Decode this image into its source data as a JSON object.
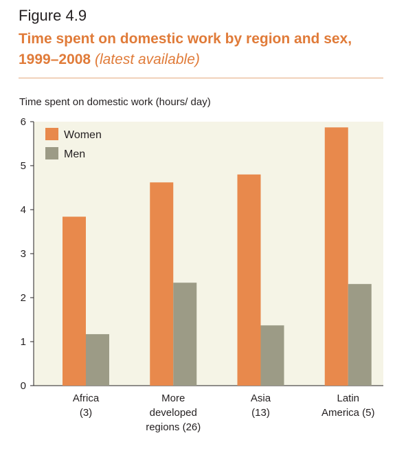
{
  "figure_label": "Figure 4.9",
  "title_main": "Time spent on domestic work by region and sex, 1999–2008",
  "title_sub": "(latest available)",
  "colors": {
    "women": "#e8894c",
    "men": "#9c9b86",
    "plot_bg": "#f5f4e6",
    "title": "#e07b39"
  },
  "chart_data": {
    "type": "bar",
    "ylabel": "Time spent on domestic work (hours/ day)",
    "xlabel": "",
    "ylim": [
      0,
      6
    ],
    "yticks": [
      0,
      1,
      2,
      3,
      4,
      5,
      6
    ],
    "grid": false,
    "legend_position": "top-left",
    "categories": [
      [
        "Africa",
        "(3)"
      ],
      [
        "More",
        "developed",
        "regions (26)"
      ],
      [
        "Asia",
        "(13)"
      ],
      [
        "Latin",
        "America (5)"
      ]
    ],
    "series": [
      {
        "name": "Women",
        "values": [
          3.84,
          4.62,
          4.8,
          5.87
        ]
      },
      {
        "name": "Men",
        "values": [
          1.17,
          2.34,
          1.37,
          2.31
        ]
      }
    ]
  }
}
